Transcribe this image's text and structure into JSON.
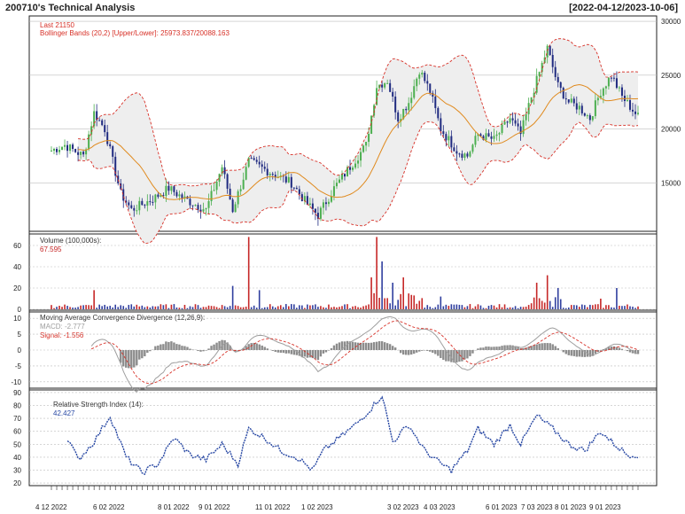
{
  "header": {
    "title": "200710's Technical Analysis",
    "date_range": "[2022-04-12/2023-10-06]"
  },
  "colors": {
    "up": "#4caf50",
    "down": "#1f2a80",
    "bollinger": "#d73027",
    "ma": "#e08a1e",
    "band_fill": "#eeeeee",
    "volume_up": "#c62828",
    "volume_down": "#303f9f",
    "macd_line": "#9e9e9e",
    "signal_line": "#d73027",
    "histogram": "#8c8c8c",
    "rsi": "#2747a3"
  },
  "chart_data": [
    {
      "type": "candlestick",
      "panel": "price",
      "annotations": {
        "last": "Last 21150",
        "bollinger": "Bollinger Bands (20,2) [Upper/Lower]: 25973.837/20088.163"
      },
      "y_ticks": [
        15000,
        20000,
        25000,
        30000
      ],
      "ylim": [
        10500,
        30500
      ],
      "grid": true,
      "series_keypoints": [
        [
          0,
          18000
        ],
        [
          5,
          18500
        ],
        [
          12,
          17500
        ],
        [
          16,
          21500
        ],
        [
          20,
          20000
        ],
        [
          26,
          14000
        ],
        [
          30,
          12500
        ],
        [
          38,
          13500
        ],
        [
          44,
          14500
        ],
        [
          50,
          13500
        ],
        [
          58,
          12500
        ],
        [
          64,
          16500
        ],
        [
          68,
          12500
        ],
        [
          74,
          17000
        ],
        [
          82,
          16000
        ],
        [
          90,
          15000
        ],
        [
          96,
          13000
        ],
        [
          100,
          12000
        ],
        [
          106,
          14500
        ],
        [
          112,
          16500
        ],
        [
          118,
          18500
        ],
        [
          122,
          24000
        ],
        [
          126,
          24500
        ],
        [
          130,
          21000
        ],
        [
          134,
          22500
        ],
        [
          138,
          25500
        ],
        [
          142,
          23500
        ],
        [
          146,
          20000
        ],
        [
          152,
          18000
        ],
        [
          156,
          17500
        ],
        [
          160,
          19500
        ],
        [
          166,
          19000
        ],
        [
          172,
          21000
        ],
        [
          176,
          19500
        ],
        [
          180,
          23000
        ],
        [
          186,
          27500
        ],
        [
          190,
          24000
        ],
        [
          194,
          22500
        ],
        [
          198,
          22000
        ],
        [
          202,
          21000
        ],
        [
          206,
          23500
        ],
        [
          210,
          25000
        ],
        [
          214,
          23000
        ],
        [
          220,
          21150
        ]
      ]
    },
    {
      "type": "bar",
      "panel": "volume",
      "label": "Volume (100,000s):",
      "value_label": "67.595",
      "y_ticks": [
        0,
        20,
        40,
        60
      ],
      "ylim": [
        0,
        70
      ],
      "spikes": [
        [
          16,
          18
        ],
        [
          68,
          22
        ],
        [
          74,
          68
        ],
        [
          78,
          18
        ],
        [
          120,
          30
        ],
        [
          122,
          68
        ],
        [
          124,
          45
        ],
        [
          128,
          25
        ],
        [
          132,
          30
        ],
        [
          146,
          12
        ],
        [
          182,
          25
        ],
        [
          186,
          32
        ],
        [
          190,
          20
        ],
        [
          206,
          10
        ],
        [
          212,
          20
        ]
      ]
    },
    {
      "type": "line",
      "panel": "macd",
      "label": "Moving Average Convergence Divergence (12,26,9):",
      "macd_label": "MACD: -2.777",
      "signal_label": "Signal: -1.556",
      "y_ticks": [
        -10,
        -5,
        0,
        5,
        10
      ],
      "ylim": [
        -12,
        12
      ]
    },
    {
      "type": "line",
      "panel": "rsi",
      "label": "Relative Strength Index (14):",
      "value_label": "42.427",
      "y_ticks": [
        20,
        30,
        40,
        50,
        60,
        70,
        80,
        90
      ],
      "ylim": [
        18,
        92
      ],
      "series_keypoints": [
        [
          6,
          55
        ],
        [
          10,
          38
        ],
        [
          16,
          52
        ],
        [
          22,
          72
        ],
        [
          28,
          40
        ],
        [
          34,
          28
        ],
        [
          40,
          35
        ],
        [
          46,
          55
        ],
        [
          52,
          42
        ],
        [
          58,
          38
        ],
        [
          64,
          50
        ],
        [
          70,
          35
        ],
        [
          74,
          62
        ],
        [
          80,
          55
        ],
        [
          86,
          45
        ],
        [
          92,
          40
        ],
        [
          98,
          30
        ],
        [
          102,
          45
        ],
        [
          108,
          55
        ],
        [
          114,
          65
        ],
        [
          120,
          78
        ],
        [
          124,
          88
        ],
        [
          128,
          52
        ],
        [
          134,
          65
        ],
        [
          140,
          45
        ],
        [
          146,
          35
        ],
        [
          150,
          30
        ],
        [
          156,
          45
        ],
        [
          160,
          62
        ],
        [
          166,
          50
        ],
        [
          172,
          65
        ],
        [
          176,
          50
        ],
        [
          182,
          72
        ],
        [
          188,
          62
        ],
        [
          194,
          50
        ],
        [
          200,
          45
        ],
        [
          206,
          60
        ],
        [
          210,
          52
        ],
        [
          216,
          42
        ]
      ]
    }
  ],
  "x_axis": {
    "labels": [
      "4 12 2022",
      "6 02 2022",
      "8 01 2022",
      "9 01 2022",
      "11 01 2022",
      "1 02 2023",
      "3 02 2023",
      "4 03 2023",
      "6 01 2023",
      "7 03 2023",
      "8 01 2023",
      "9 01 2023"
    ],
    "label_index": [
      0,
      16,
      46,
      62,
      86,
      106,
      122,
      134,
      158,
      172,
      184,
      202
    ]
  }
}
